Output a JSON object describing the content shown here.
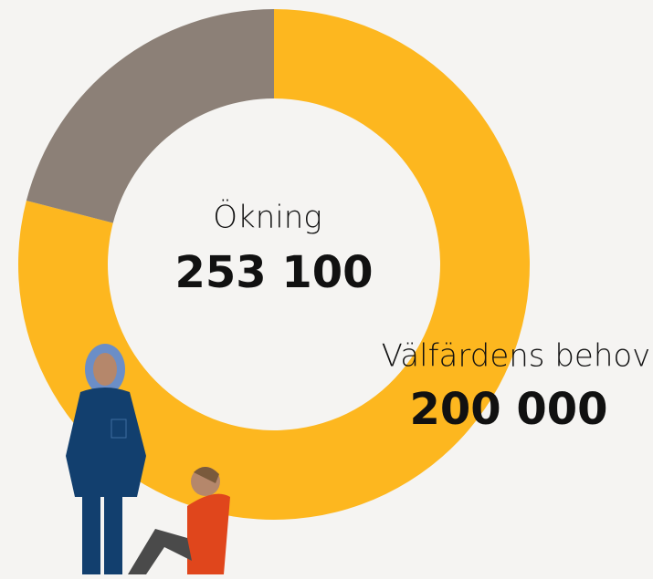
{
  "chart_data": {
    "type": "donut",
    "categories": [
      "Välfärdens behov",
      null
    ],
    "values": [
      200000,
      53100
    ],
    "value_labels": [
      "200 000",
      null
    ],
    "colors": [
      "#fdb71f",
      "#8c8077"
    ],
    "total": {
      "label": "Ökning",
      "value": 253100,
      "value_label": "253 100"
    }
  }
}
